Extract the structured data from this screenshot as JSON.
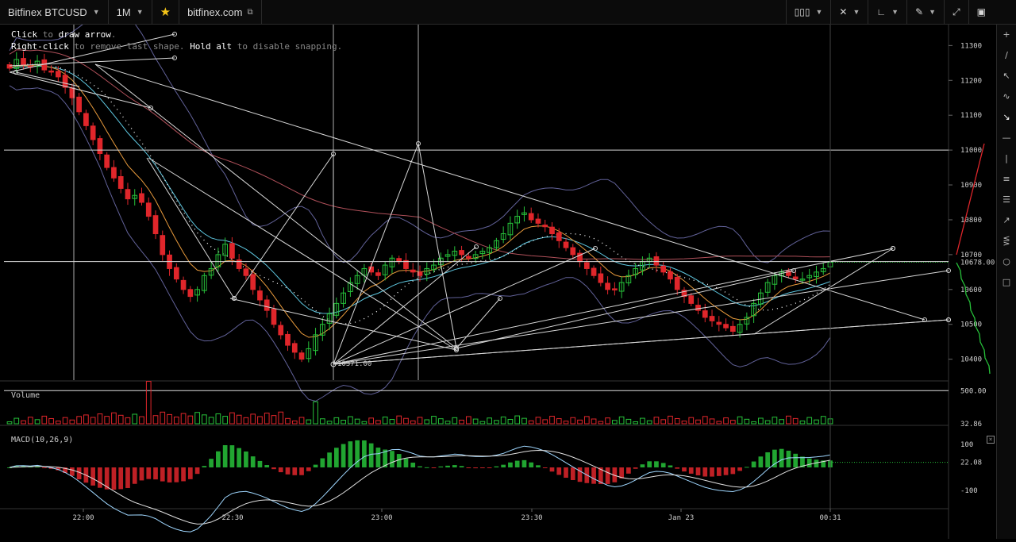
{
  "toolbar": {
    "symbol": "Bitfinex BTCUSD",
    "timeframe": "1M",
    "site": "bitfinex.com",
    "right_tools": [
      "bars-icon",
      "crosshair-icon",
      "indicators-icon",
      "draw-icon",
      "fullscreen-icon",
      "screenshot-icon"
    ]
  },
  "hints": {
    "line1_action": "Click",
    "line1_rest": " to ",
    "line1_action2": "draw arrow",
    "line1_end": ".",
    "line2_action": "Right-click",
    "line2_rest": " to remove last shape. ",
    "line2_action2": "Hold alt",
    "line2_end": " to disable snapping."
  },
  "price_axis": {
    "ticks": [
      "11300",
      "11200",
      "11100",
      "11000",
      "10900",
      "10800",
      "10700",
      "10600",
      "10500",
      "10400"
    ],
    "current_price": "10678.00",
    "low_label": "10371.00"
  },
  "time_axis": {
    "ticks": [
      "22:00",
      "22:30",
      "23:00",
      "23:30",
      "Jan 23",
      "00:31"
    ]
  },
  "volume_panel": {
    "title": "Volume",
    "ticks": [
      "500.00",
      "32.86"
    ]
  },
  "macd_panel": {
    "title": "MACD(10,26,9)",
    "ticks": [
      "100",
      "22.08",
      "-100"
    ]
  },
  "colors": {
    "up": "#27c23a",
    "down": "#e0262b",
    "drawing": "#d8d8d8",
    "bb": "#8a8ad8",
    "ema_fast": "#e89a3c",
    "ema_slow": "#5ec7e0",
    "ma_long": "#b0505a"
  },
  "chart_data": {
    "type": "candlestick",
    "title": "Bitfinex BTCUSD",
    "interval": "1M",
    "ylim": [
      10340,
      11360
    ],
    "close": [
      11235,
      11260,
      11245,
      11240,
      11255,
      11230,
      11225,
      11210,
      11180,
      11150,
      11110,
      11070,
      11030,
      10990,
      10950,
      10920,
      10890,
      10860,
      10870,
      10850,
      10810,
      10760,
      10700,
      10660,
      10630,
      10600,
      10580,
      10600,
      10640,
      10660,
      10700,
      10730,
      10690,
      10660,
      10640,
      10600,
      10570,
      10540,
      10500,
      10470,
      10440,
      10420,
      10400,
      10430,
      10470,
      10500,
      10530,
      10560,
      10590,
      10620,
      10640,
      10660,
      10650,
      10640,
      10670,
      10690,
      10680,
      10660,
      10650,
      10640,
      10660,
      10670,
      10690,
      10700,
      10710,
      10700,
      10690,
      10700,
      10710,
      10720,
      10740,
      10760,
      10790,
      10810,
      10820,
      10800,
      10790,
      10780,
      10760,
      10740,
      10720,
      10700,
      10680,
      10660,
      10640,
      10620,
      10600,
      10600,
      10620,
      10640,
      10660,
      10680,
      10690,
      10670,
      10650,
      10630,
      10600,
      10580,
      10560,
      10540,
      10520,
      10510,
      10500,
      10490,
      10480,
      10500,
      10520,
      10560,
      10590,
      10620,
      10640,
      10650,
      10640,
      10630,
      10630,
      10640,
      10650,
      10660,
      10678
    ],
    "volume_max": 500,
    "macd_range": [
      -130,
      130
    ]
  }
}
